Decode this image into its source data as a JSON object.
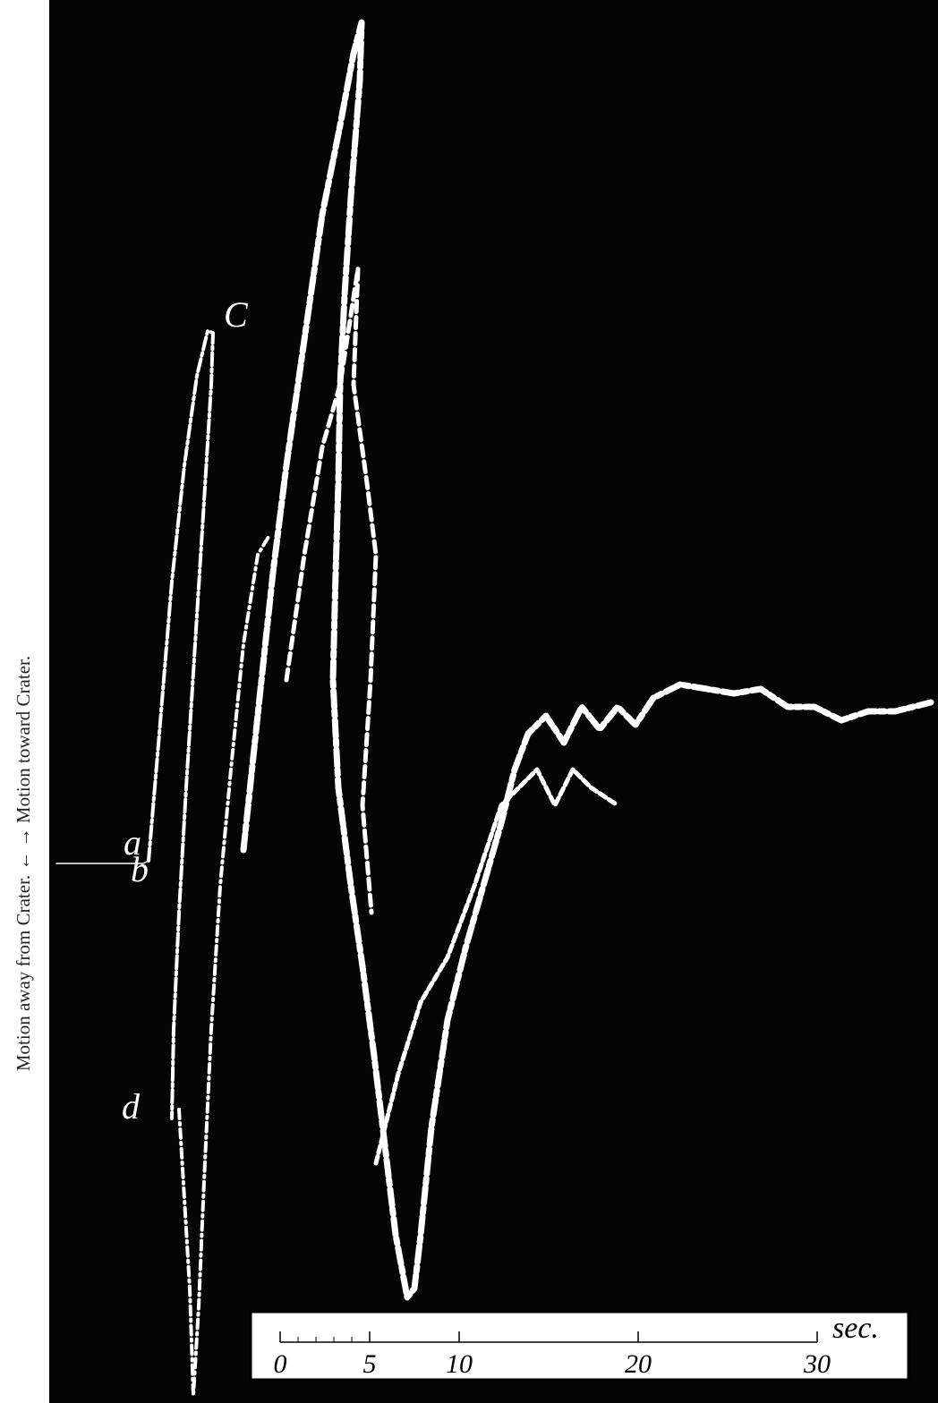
{
  "side_label": "Motion away from Crater. ← → Motion toward Crater.",
  "trace_labels": [
    "a",
    "b",
    "C",
    "d"
  ],
  "scale": {
    "ticks": [
      0,
      5,
      10,
      20,
      30
    ],
    "unit": "sec."
  }
}
